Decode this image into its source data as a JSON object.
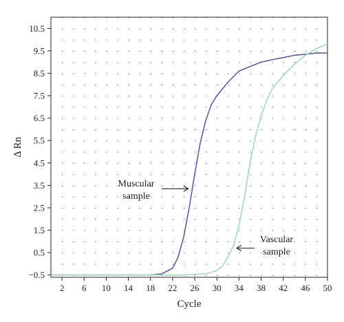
{
  "chart_data": {
    "type": "line",
    "title": "",
    "xlabel": "Cycle",
    "ylabel": "Δ Rn",
    "xlim": [
      0,
      50
    ],
    "ylim": [
      -0.6,
      11.0
    ],
    "x_ticks": [
      "2",
      "6",
      "10",
      "14",
      "18",
      "22",
      "26",
      "30",
      "34",
      "38",
      "42",
      "46",
      "50"
    ],
    "y_ticks": [
      "10.5",
      "9.5",
      "8.5",
      "7.5",
      "6.5",
      "5.5",
      "4.5",
      "3.5",
      "2.5",
      "1.5",
      "0.5",
      "−0.5"
    ],
    "grid": "dotted",
    "series": [
      {
        "color": "#5b5f93",
        "x": [
          0,
          10,
          18,
          20,
          22,
          23,
          24,
          25,
          26,
          27,
          28,
          29,
          30,
          32,
          34,
          36,
          38,
          40,
          42,
          44,
          46,
          48,
          50
        ],
        "y": [
          -0.5,
          -0.5,
          -0.5,
          -0.45,
          -0.2,
          0.3,
          1.2,
          2.5,
          4.0,
          5.4,
          6.4,
          7.1,
          7.5,
          8.1,
          8.6,
          8.8,
          9.0,
          9.1,
          9.2,
          9.3,
          9.35,
          9.4,
          9.4
        ]
      },
      {
        "color": "#a9d2c4",
        "x": [
          0,
          10,
          20,
          24,
          28,
          30,
          31,
          32,
          33,
          34,
          35,
          36,
          37,
          38,
          39,
          40,
          42,
          44,
          46,
          48,
          50
        ],
        "y": [
          -0.5,
          -0.5,
          -0.5,
          -0.5,
          -0.45,
          -0.3,
          -0.1,
          0.3,
          0.8,
          1.7,
          3.0,
          4.5,
          5.7,
          6.6,
          7.3,
          7.8,
          8.4,
          8.9,
          9.3,
          9.6,
          9.8
        ]
      }
    ],
    "annotations": [
      {
        "text": "Muscular sample",
        "line1": "Muscular",
        "line2": "sample",
        "arrow_to": [
          25.1,
          3.35
        ]
      },
      {
        "text": "Vascular sample",
        "line1": "Vascular",
        "line2": "sample",
        "arrow_to": [
          33.3,
          0.7
        ]
      }
    ]
  }
}
